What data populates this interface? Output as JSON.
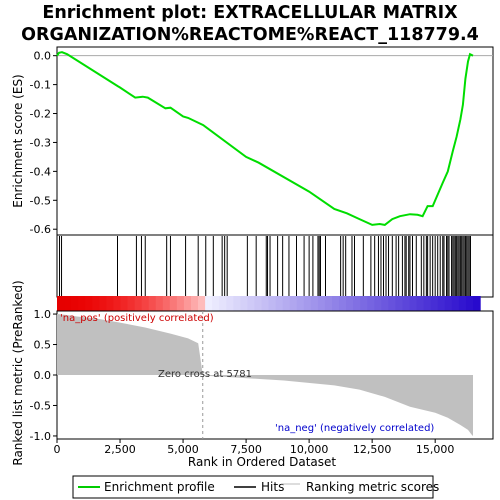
{
  "title_line1": "Enrichment plot: EXTRACELLULAR MATRIX",
  "title_line2": "ORGANIZATION%REACTOME%REACT_118779.4",
  "labels": {
    "es_ylabel": "Enrichment score (ES)",
    "metric_ylabel": "Ranked list metric (PreRanked)",
    "xlabel": "Rank in Ordered Dataset",
    "pos_label": "'na_pos' (positively correlated)",
    "neg_label": "'na_neg' (negatively correlated)",
    "zero_cross": "Zero cross at 5781"
  },
  "legend": [
    {
      "key": "enrichment",
      "label": "Enrichment profile",
      "color": "#00cc00"
    },
    {
      "key": "hits",
      "label": "Hits",
      "color": "#000000"
    },
    {
      "key": "metric",
      "label": "Ranking metric scores",
      "color": "#bbbbbb"
    }
  ],
  "colors": {
    "pos_text": "#cc0000",
    "neg_text": "#0000cc",
    "profile": "#00dd00",
    "metric_fill": "#c0c0c0"
  },
  "chart_data": {
    "type": "line",
    "x_range": [
      0,
      16500
    ],
    "x_ticks": [
      0,
      2500,
      5000,
      7500,
      10000,
      12500,
      15000
    ],
    "x_tick_labels": [
      "0",
      "2,500",
      "5,000",
      "7,500",
      "10,000",
      "12,500",
      "15,000"
    ],
    "es_ylim": [
      -0.62,
      0.03
    ],
    "es_ticks": [
      0.0,
      -0.1,
      -0.2,
      -0.3,
      -0.4,
      -0.5,
      -0.6
    ],
    "es_tick_labels": [
      "0.0",
      "-0.1",
      "-0.2",
      "-0.3",
      "-0.4",
      "-0.5",
      "-0.6"
    ],
    "metric_ylim": [
      -1.05,
      1.05
    ],
    "metric_ticks": [
      1.0,
      0.5,
      0.0,
      -0.5,
      -1.0
    ],
    "metric_tick_labels": [
      "1.0",
      "0.5",
      "0.0",
      "-0.5",
      "-1.0"
    ],
    "zero_cross": 5781,
    "enrichment_profile": [
      [
        0,
        0.0
      ],
      [
        80,
        0.01
      ],
      [
        200,
        0.012
      ],
      [
        400,
        0.005
      ],
      [
        2400,
        -0.105
      ],
      [
        2500,
        -0.11
      ],
      [
        3100,
        -0.145
      ],
      [
        3400,
        -0.142
      ],
      [
        3600,
        -0.145
      ],
      [
        4300,
        -0.182
      ],
      [
        4500,
        -0.18
      ],
      [
        5000,
        -0.21
      ],
      [
        5200,
        -0.215
      ],
      [
        5800,
        -0.24
      ],
      [
        7500,
        -0.35
      ],
      [
        8000,
        -0.37
      ],
      [
        10000,
        -0.47
      ],
      [
        11000,
        -0.53
      ],
      [
        11500,
        -0.545
      ],
      [
        12000,
        -0.565
      ],
      [
        12500,
        -0.585
      ],
      [
        12800,
        -0.582
      ],
      [
        13000,
        -0.585
      ],
      [
        13300,
        -0.565
      ],
      [
        13600,
        -0.555
      ],
      [
        14000,
        -0.548
      ],
      [
        14300,
        -0.55
      ],
      [
        14500,
        -0.555
      ],
      [
        14700,
        -0.52
      ],
      [
        14900,
        -0.52
      ],
      [
        15100,
        -0.48
      ],
      [
        15300,
        -0.44
      ],
      [
        15500,
        -0.4
      ],
      [
        15700,
        -0.33
      ],
      [
        15850,
        -0.28
      ],
      [
        16000,
        -0.22
      ],
      [
        16100,
        -0.17
      ],
      [
        16200,
        -0.08
      ],
      [
        16300,
        -0.02
      ],
      [
        16380,
        0.005
      ],
      [
        16500,
        0.0
      ]
    ],
    "hits": [
      100,
      180,
      2400,
      3150,
      3350,
      3500,
      4350,
      4500,
      5100,
      5600,
      5900,
      6200,
      6550,
      6650,
      6750,
      7550,
      7900,
      8300,
      8350,
      8450,
      8750,
      8950,
      9200,
      9500,
      9800,
      10000,
      10150,
      10350,
      10400,
      10450,
      10650,
      11250,
      11350,
      11450,
      11700,
      11800,
      12150,
      12450,
      12600,
      12750,
      12850,
      12950,
      13050,
      13150,
      13300,
      13450,
      13550,
      13700,
      13800,
      13850,
      13950,
      14000,
      14100,
      14250,
      14450,
      14550,
      14650,
      14700,
      14800,
      14900,
      15000,
      15100,
      15200,
      15300,
      15350,
      15450,
      15500,
      15550,
      15650,
      15700,
      15750,
      15800,
      15850,
      15900,
      15950,
      16000,
      16050,
      16100,
      16150,
      16200,
      16250,
      16300,
      16350,
      16400
    ],
    "ranked_metric": [
      [
        0,
        1.0
      ],
      [
        300,
        0.99
      ],
      [
        800,
        0.96
      ],
      [
        1500,
        0.93
      ],
      [
        2500,
        0.86
      ],
      [
        3500,
        0.78
      ],
      [
        4500,
        0.68
      ],
      [
        5200,
        0.6
      ],
      [
        5600,
        0.52
      ],
      [
        5781,
        0.0
      ],
      [
        5800,
        -0.01
      ],
      [
        7000,
        -0.04
      ],
      [
        9000,
        -0.09
      ],
      [
        11000,
        -0.17
      ],
      [
        12000,
        -0.24
      ],
      [
        13000,
        -0.36
      ],
      [
        14000,
        -0.52
      ],
      [
        15000,
        -0.62
      ],
      [
        15500,
        -0.7
      ],
      [
        16000,
        -0.82
      ],
      [
        16300,
        -0.9
      ],
      [
        16450,
        -0.98
      ],
      [
        16500,
        -1.0
      ]
    ]
  }
}
